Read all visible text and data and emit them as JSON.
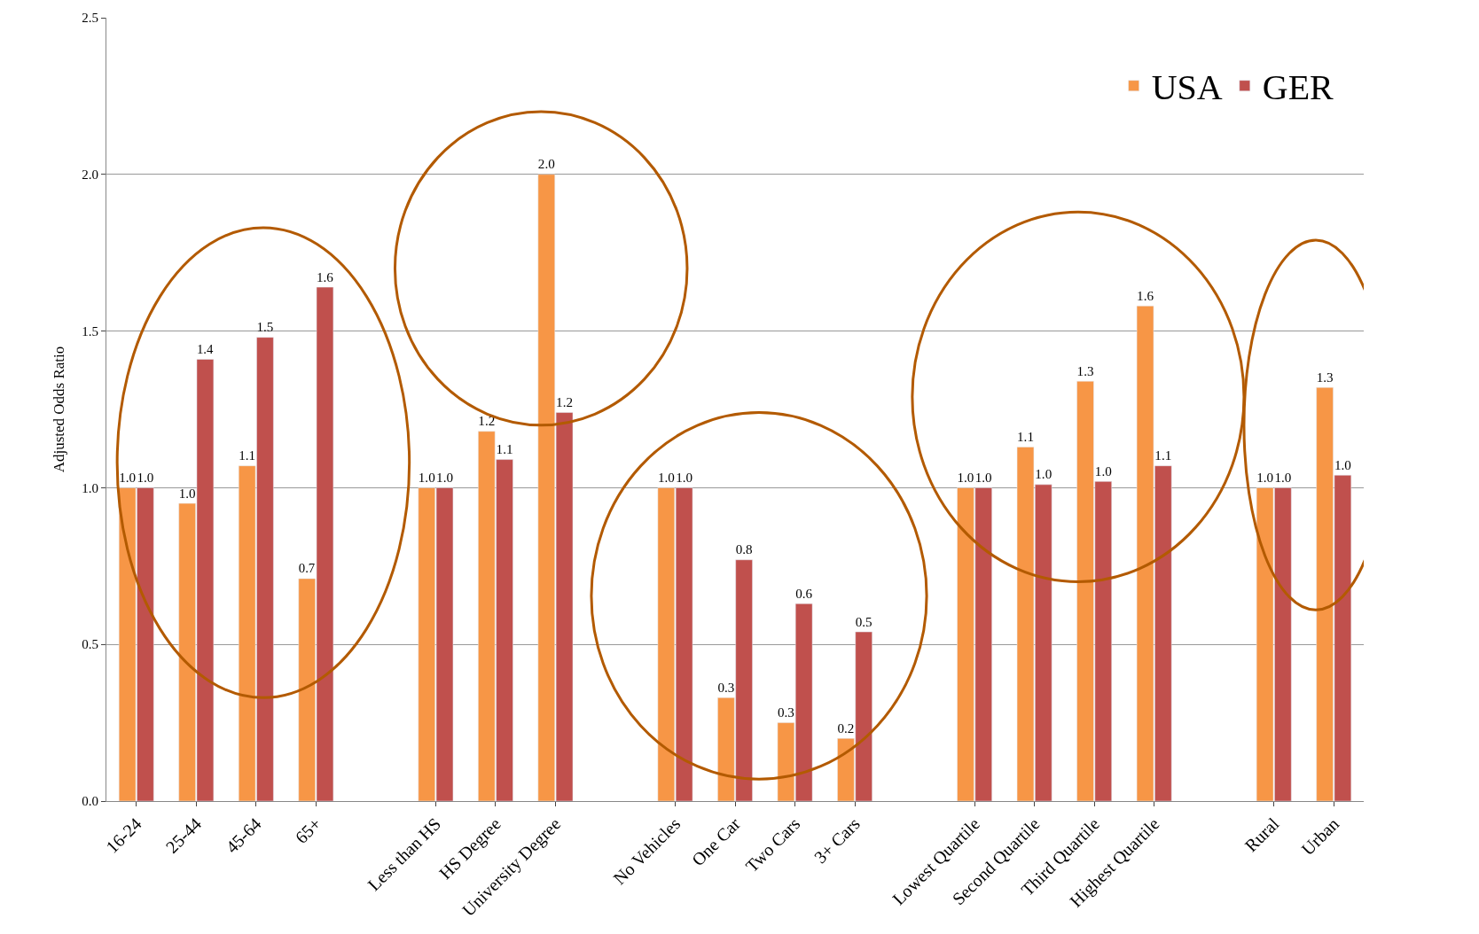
{
  "chart_data": {
    "type": "bar",
    "ylabel": "Adjusted Odds Ratio",
    "categories": [
      "16-24",
      "25-44",
      "45-64",
      "65+",
      null,
      "Less than HS",
      "HS Degree",
      "University Degree",
      null,
      "No Vehicles",
      "One Car",
      "Two Cars",
      "3+ Cars",
      null,
      "Lowest Quartile",
      "Second Quartile",
      "Third Quartile",
      "Highest Quartile",
      null,
      "Rural",
      "Urban"
    ],
    "series": [
      {
        "name": "USA",
        "color": "#f79646",
        "values": [
          1.0,
          0.95,
          1.07,
          0.71,
          null,
          1.0,
          1.18,
          2.0,
          null,
          1.0,
          0.33,
          0.25,
          0.2,
          null,
          1.0,
          1.13,
          1.34,
          1.58,
          null,
          1.0,
          1.32
        ],
        "value_labels": [
          "1.0",
          "1.0",
          "1.1",
          "0.7",
          null,
          "1.0",
          "1.2",
          "2.0",
          null,
          "1.0",
          "0.3",
          "0.3",
          "0.2",
          null,
          "1.0",
          "1.1",
          "1.3",
          "1.6",
          null,
          "1.0",
          "1.3"
        ]
      },
      {
        "name": "GER",
        "color": "#c0504d",
        "values": [
          1.0,
          1.41,
          1.48,
          1.64,
          null,
          1.0,
          1.09,
          1.24,
          null,
          1.0,
          0.77,
          0.63,
          0.54,
          null,
          1.0,
          1.01,
          1.02,
          1.07,
          null,
          1.0,
          1.04
        ],
        "value_labels": [
          "1.0",
          "1.4",
          "1.5",
          "1.6",
          null,
          "1.0",
          "1.1",
          "1.2",
          null,
          "1.0",
          "0.8",
          "0.6",
          "0.5",
          null,
          "1.0",
          "1.0",
          "1.0",
          "1.1",
          null,
          "1.0",
          "1.0"
        ]
      }
    ],
    "ylim": [
      0,
      2.5
    ],
    "yticks": [
      {
        "value": 0,
        "label": "0.0"
      },
      {
        "value": 0.5,
        "label": "0.5"
      },
      {
        "value": 1,
        "label": "1.0"
      },
      {
        "value": 1.5,
        "label": "1.5"
      },
      {
        "value": 2,
        "label": "2.0"
      },
      {
        "value": 2.5,
        "label": "2.5"
      }
    ],
    "grid": "y",
    "legend": "top right"
  }
}
